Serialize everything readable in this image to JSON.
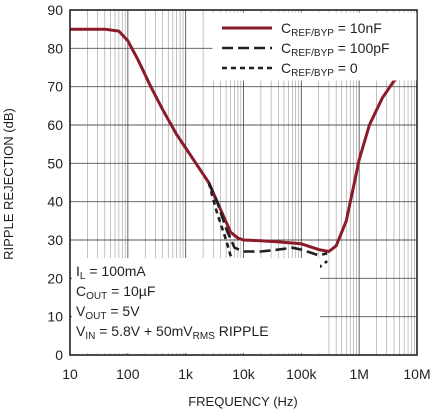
{
  "chart_data": {
    "type": "line",
    "xlabel": "FREQUENCY (Hz)",
    "ylabel": "RIPPLE REJECTION (dB)",
    "x_scale": "log",
    "xlim": [
      10,
      10000000
    ],
    "ylim": [
      0,
      90
    ],
    "grid": true,
    "x_ticks": [
      {
        "value": 10,
        "label": "10"
      },
      {
        "value": 100,
        "label": "100"
      },
      {
        "value": 1000,
        "label": "1k"
      },
      {
        "value": 10000,
        "label": "10k"
      },
      {
        "value": 100000,
        "label": "100k"
      },
      {
        "value": 1000000,
        "label": "1M"
      },
      {
        "value": 10000000,
        "label": "10M"
      }
    ],
    "y_ticks": [
      0,
      10,
      20,
      30,
      40,
      50,
      60,
      70,
      80,
      90
    ],
    "legend_position": "top-right",
    "series": [
      {
        "name_main": "C",
        "name_sub": "REF/BYP",
        "name_suffix": " = 10nF",
        "color": "#8b1a2b",
        "style": "solid",
        "points": [
          [
            10,
            85
          ],
          [
            20,
            85
          ],
          [
            40,
            85
          ],
          [
            70,
            84.5
          ],
          [
            100,
            82
          ],
          [
            150,
            77
          ],
          [
            250,
            70
          ],
          [
            400,
            64
          ],
          [
            700,
            57.5
          ],
          [
            1000,
            54
          ],
          [
            1500,
            50
          ],
          [
            2500,
            45
          ],
          [
            4000,
            38
          ],
          [
            6000,
            32
          ],
          [
            8000,
            30.5
          ],
          [
            10000,
            30
          ],
          [
            20000,
            29.8
          ],
          [
            40000,
            29.5
          ],
          [
            100000,
            29
          ],
          [
            200000,
            27.5
          ],
          [
            300000,
            27
          ],
          [
            400000,
            28.5
          ],
          [
            600000,
            35
          ],
          [
            800000,
            44
          ],
          [
            1000000,
            51
          ],
          [
            1500000,
            60
          ],
          [
            2500000,
            67
          ],
          [
            4000000,
            71.5
          ],
          [
            6000000,
            73.5
          ],
          [
            10000000,
            73.5
          ]
        ]
      },
      {
        "name_main": "C",
        "name_sub": "REF/BYP",
        "name_suffix": " = 100pF",
        "color": "#231f20",
        "style": "longdash",
        "points": [
          [
            2500,
            45
          ],
          [
            3500,
            40
          ],
          [
            5000,
            33
          ],
          [
            7000,
            28
          ],
          [
            10000,
            27
          ],
          [
            20000,
            27
          ],
          [
            40000,
            27.5
          ],
          [
            70000,
            28
          ],
          [
            100000,
            27.5
          ],
          [
            200000,
            26
          ],
          [
            280000,
            26.5
          ]
        ]
      },
      {
        "name_main": "C",
        "name_sub": "REF/BYP",
        "name_suffix": " = 0",
        "color": "#231f20",
        "style": "shortdash",
        "points": [
          [
            2500,
            45
          ],
          [
            3500,
            37
          ],
          [
            5000,
            30
          ],
          [
            6500,
            24
          ],
          [
            8000,
            22.8
          ],
          [
            10000,
            22.5
          ],
          [
            20000,
            22.3
          ],
          [
            40000,
            22.5
          ],
          [
            70000,
            23.3
          ],
          [
            100000,
            23
          ],
          [
            200000,
            22.8
          ],
          [
            280000,
            24.5
          ]
        ]
      }
    ],
    "annotation_lines": [
      {
        "main": "I",
        "sub": "L",
        "rest": " = 100mA",
        "sub2": "",
        "rest2": ""
      },
      {
        "main": "C",
        "sub": "OUT",
        "rest": " = 10µF",
        "sub2": "",
        "rest2": ""
      },
      {
        "main": "V",
        "sub": "OUT",
        "rest": " = 5V",
        "sub2": "",
        "rest2": ""
      },
      {
        "main": "V",
        "sub": "IN",
        "rest": " = 5.8V + 50mV",
        "sub2": "RMS",
        "rest2": " RIPPLE"
      }
    ]
  }
}
